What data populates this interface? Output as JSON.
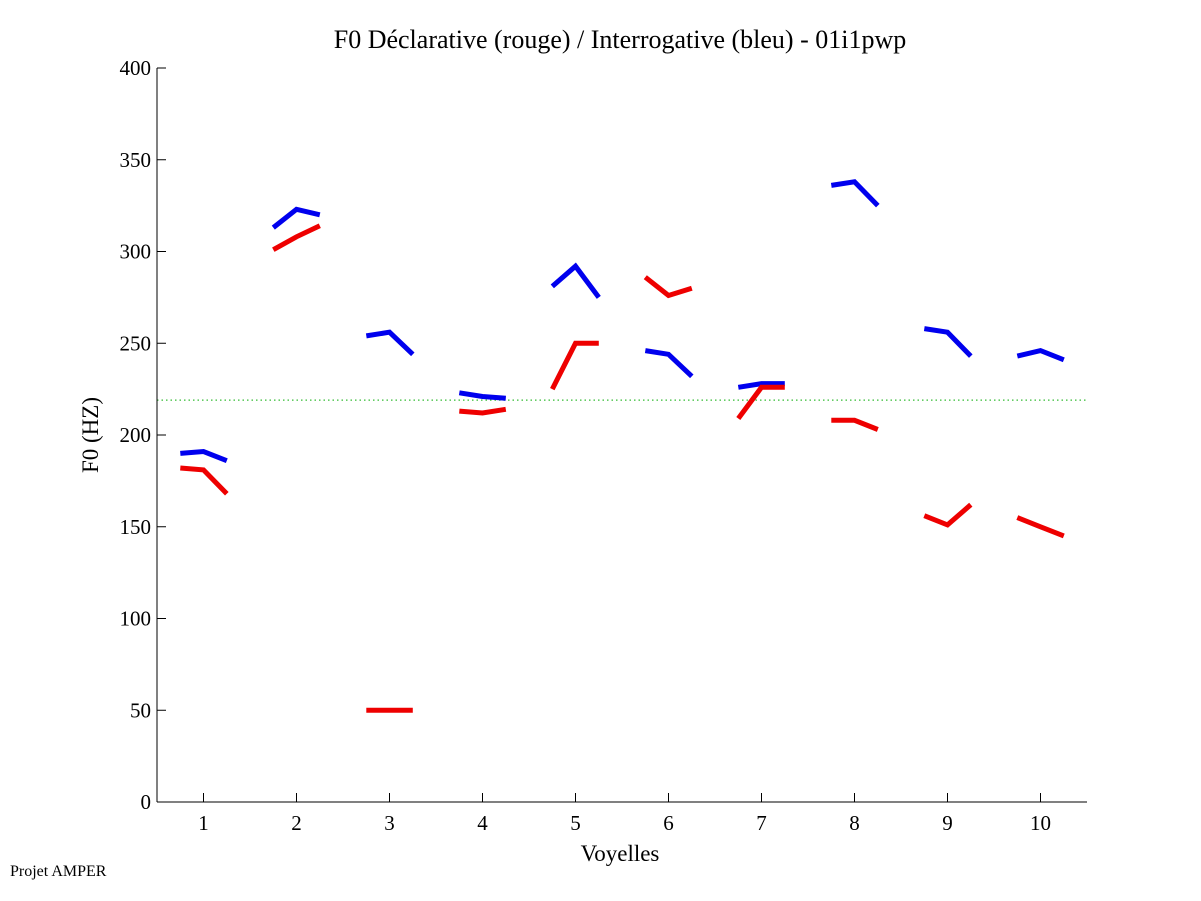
{
  "chart_data": {
    "type": "line",
    "title": "F0 Déclarative (rouge) / Interrogative (bleu) - 01i1pwp",
    "xlabel": "Voyelles",
    "ylabel": "F0 (HZ)",
    "xlim": [
      0.5,
      10.5
    ],
    "ylim": [
      0,
      400
    ],
    "xticks": [
      1,
      2,
      3,
      4,
      5,
      6,
      7,
      8,
      9,
      10
    ],
    "yticks": [
      0,
      50,
      100,
      150,
      200,
      250,
      300,
      350,
      400
    ],
    "grid": false,
    "reference_line": {
      "y": 219,
      "color": "#33bb33",
      "style": "dotted"
    },
    "segment_x_offsets": [
      -0.25,
      0,
      0.25
    ],
    "series": [
      {
        "name": "Interrogative (bleu)",
        "color": "#0000ee",
        "segments": [
          {
            "vowel": 1,
            "values": [
              190,
              191,
              186
            ]
          },
          {
            "vowel": 2,
            "values": [
              313,
              323,
              320
            ]
          },
          {
            "vowel": 3,
            "values": [
              254,
              256,
              244
            ]
          },
          {
            "vowel": 4,
            "values": [
              223,
              221,
              220
            ]
          },
          {
            "vowel": 5,
            "values": [
              281,
              292,
              275
            ]
          },
          {
            "vowel": 6,
            "values": [
              246,
              244,
              232
            ]
          },
          {
            "vowel": 7,
            "values": [
              226,
              228,
              228
            ]
          },
          {
            "vowel": 8,
            "values": [
              336,
              338,
              325
            ]
          },
          {
            "vowel": 9,
            "values": [
              258,
              256,
              243
            ]
          },
          {
            "vowel": 10,
            "values": [
              243,
              246,
              241
            ]
          }
        ]
      },
      {
        "name": "Déclarative (rouge)",
        "color": "#ee0000",
        "segments": [
          {
            "vowel": 1,
            "values": [
              182,
              181,
              168
            ]
          },
          {
            "vowel": 2,
            "values": [
              301,
              308,
              314
            ]
          },
          {
            "vowel": 3,
            "values": [
              50,
              50,
              50
            ]
          },
          {
            "vowel": 4,
            "values": [
              213,
              212,
              214
            ]
          },
          {
            "vowel": 5,
            "values": [
              225,
              250,
              250
            ]
          },
          {
            "vowel": 6,
            "values": [
              286,
              276,
              280
            ]
          },
          {
            "vowel": 7,
            "values": [
              209,
              226,
              226
            ]
          },
          {
            "vowel": 8,
            "values": [
              208,
              208,
              203
            ]
          },
          {
            "vowel": 9,
            "values": [
              156,
              151,
              162
            ]
          },
          {
            "vowel": 10,
            "values": [
              155,
              150,
              145
            ]
          }
        ]
      }
    ]
  },
  "footer": {
    "text": "Projet AMPER"
  }
}
